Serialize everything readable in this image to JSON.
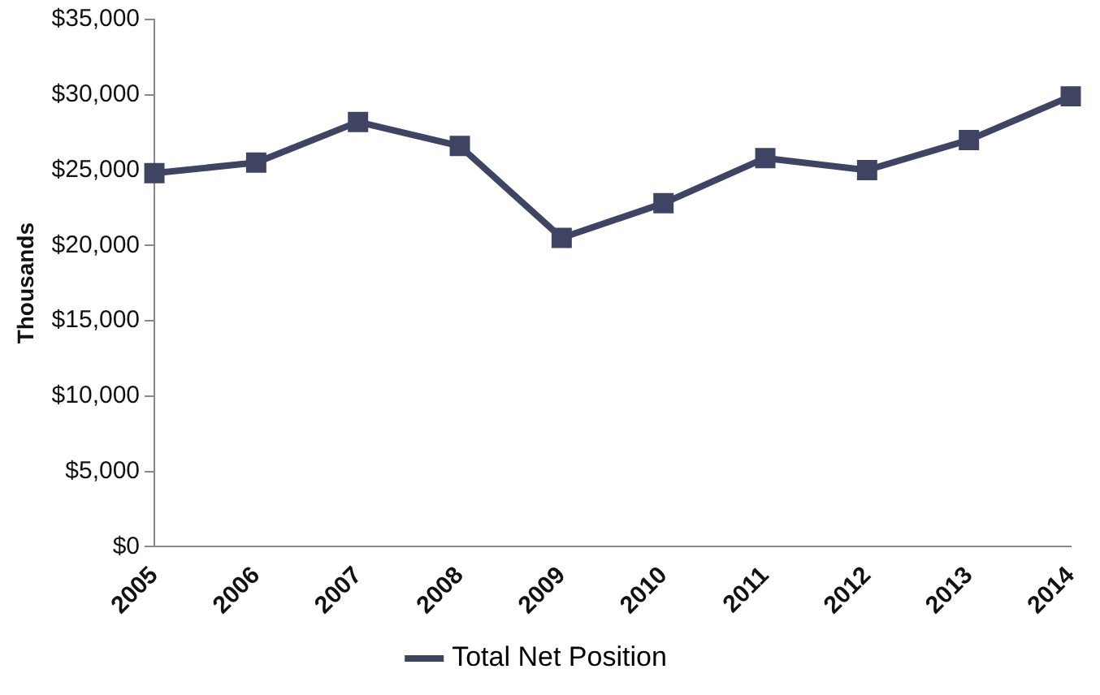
{
  "chart_data": {
    "type": "line",
    "ylabel": "Thousands",
    "categories": [
      "2005",
      "2006",
      "2007",
      "2008",
      "2009",
      "2010",
      "2011",
      "2012",
      "2013",
      "2014"
    ],
    "series": [
      {
        "name": "Total Net Position",
        "color": "#3f4462",
        "values": [
          24800,
          25500,
          28200,
          26600,
          20500,
          22800,
          25800,
          25000,
          27000,
          29900
        ]
      }
    ],
    "ylim": [
      0,
      35000
    ],
    "yticks": [
      {
        "value": 0,
        "label": "$0"
      },
      {
        "value": 5000,
        "label": "$5,000"
      },
      {
        "value": 10000,
        "label": "$10,000"
      },
      {
        "value": 15000,
        "label": "$15,000"
      },
      {
        "value": 20000,
        "label": "$20,000"
      },
      {
        "value": 25000,
        "label": "$25,000"
      },
      {
        "value": 30000,
        "label": "$30,000"
      },
      {
        "value": 35000,
        "label": "$35,000"
      }
    ],
    "grid": false,
    "legend": "bottom",
    "marker": "square",
    "line_style": "solid"
  }
}
